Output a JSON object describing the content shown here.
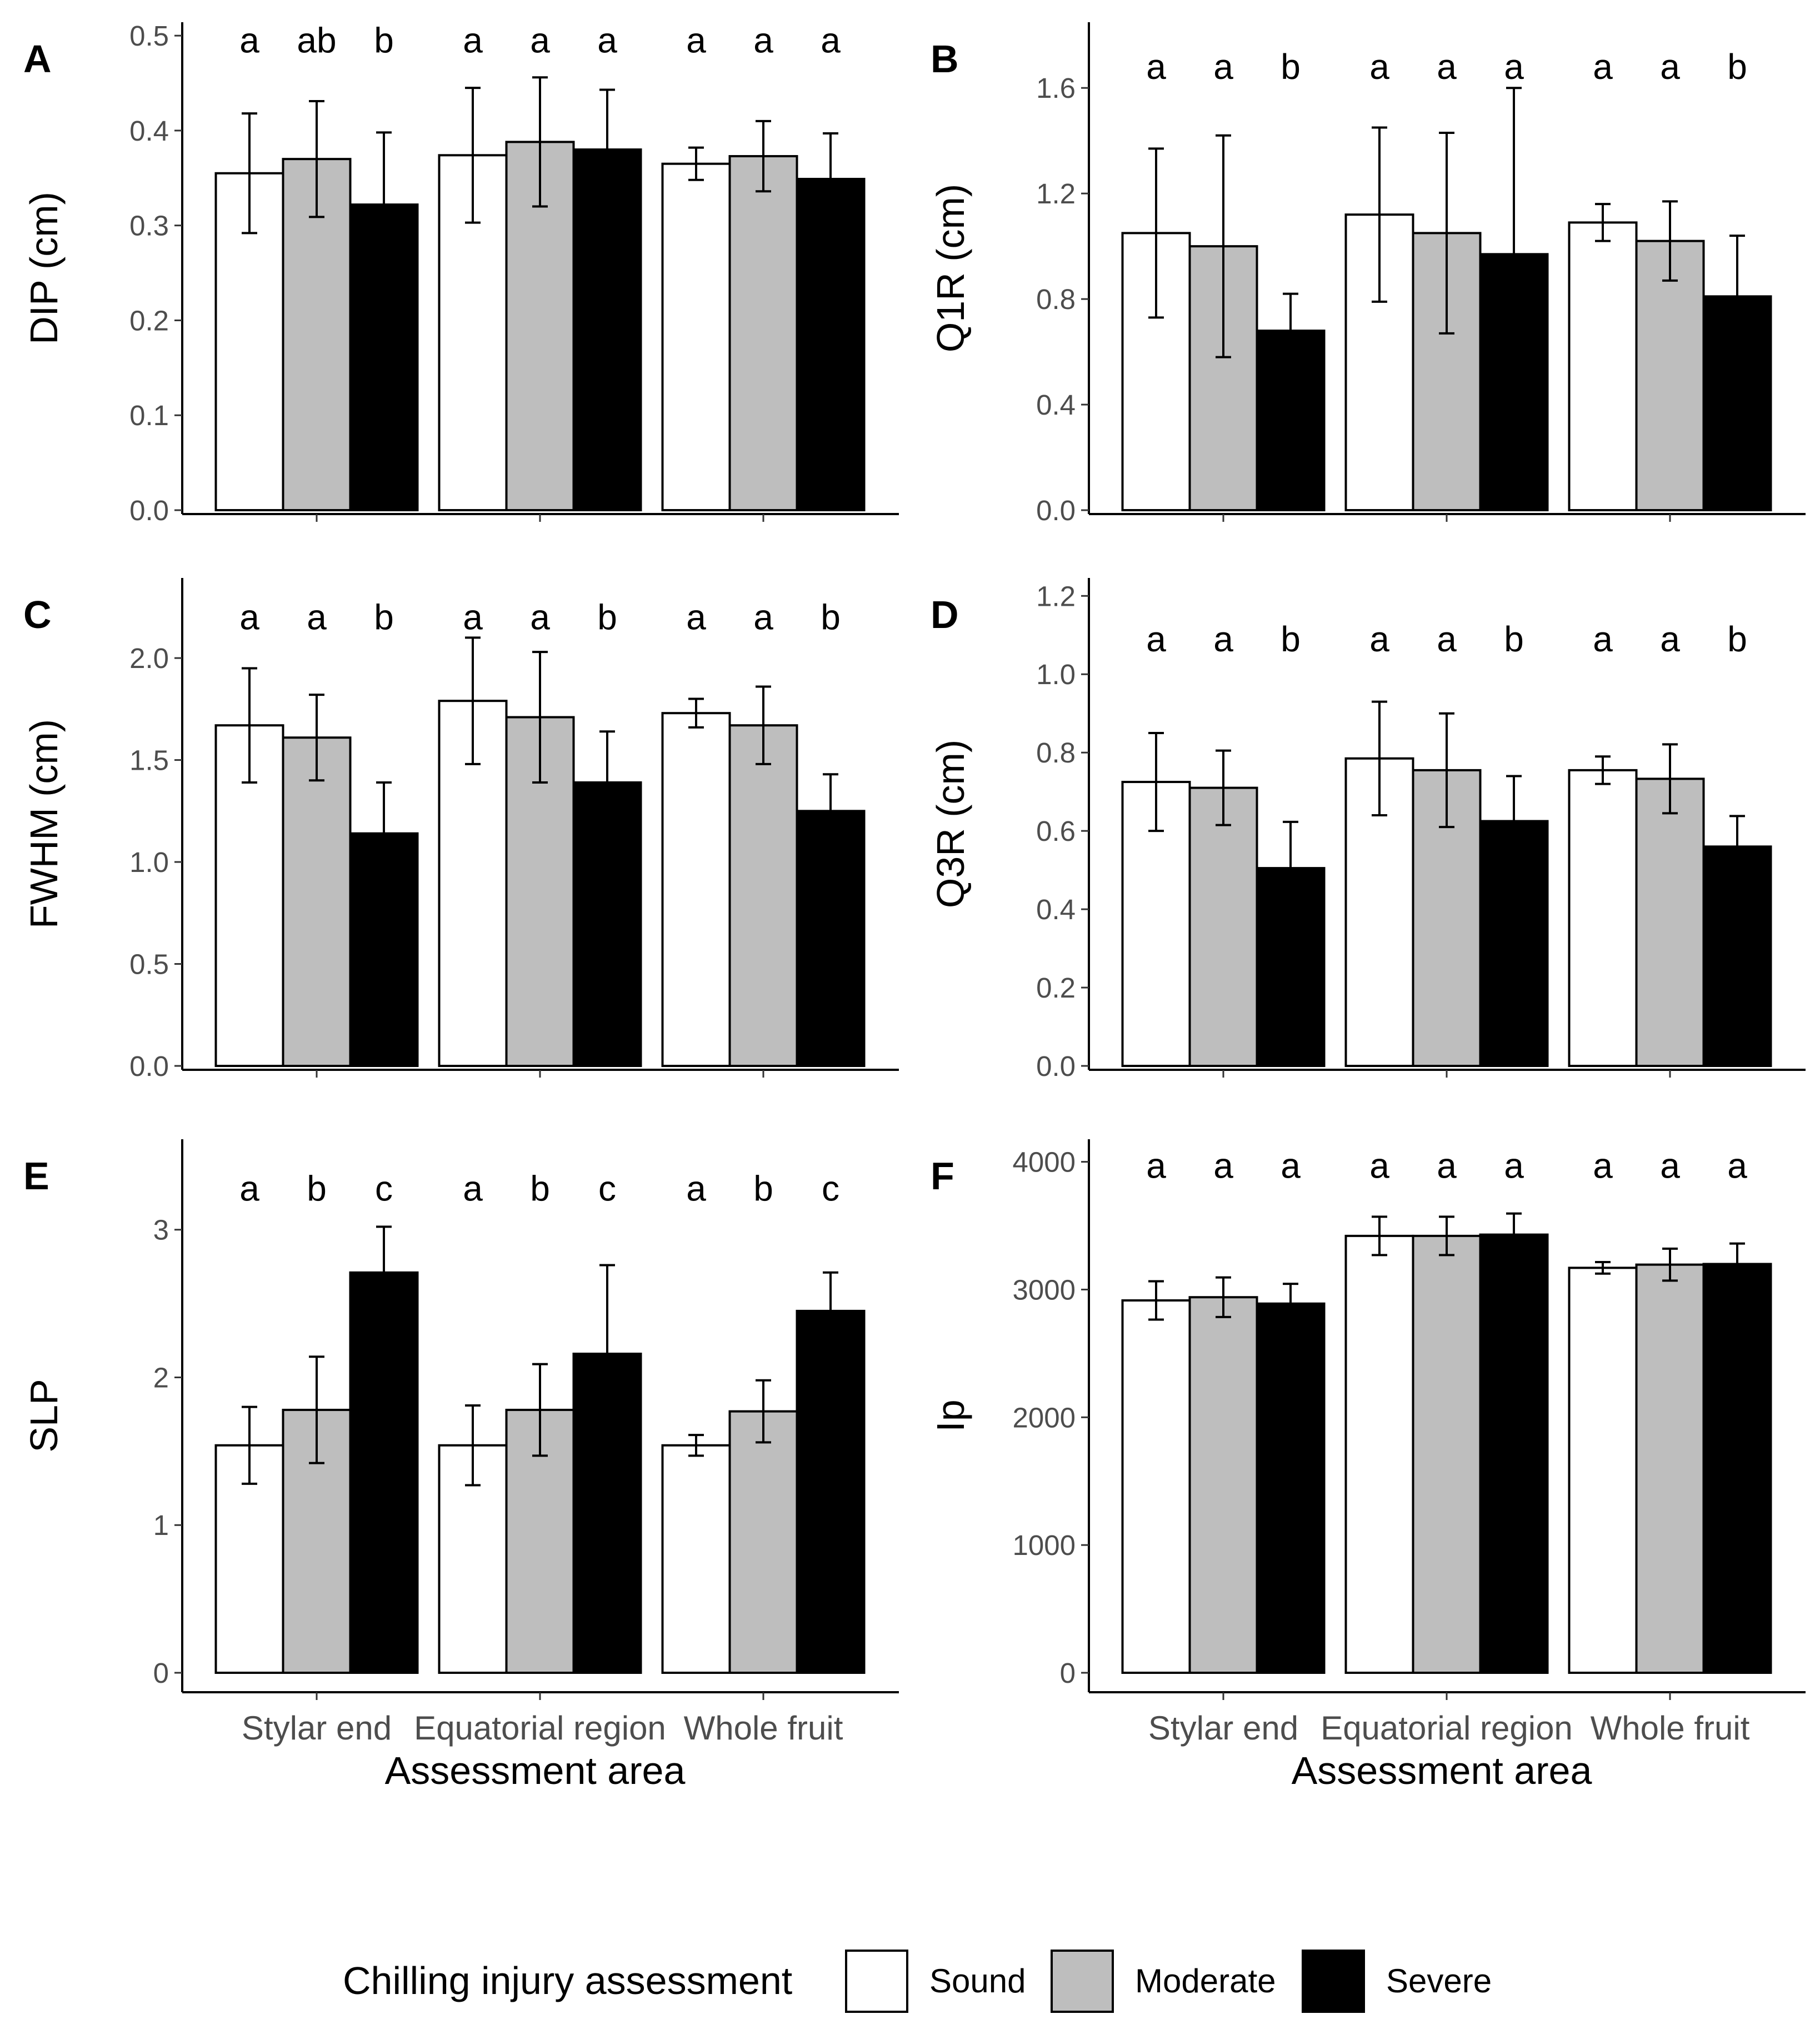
{
  "colors": {
    "sound": "#ffffff",
    "moderate": "#bebebe",
    "severe": "#000000",
    "axis": "#000000"
  },
  "legend": {
    "title": "Chilling injury assessment",
    "items": [
      {
        "label": "Sound",
        "color": "#ffffff"
      },
      {
        "label": "Moderate",
        "color": "#bebebe"
      },
      {
        "label": "Severe",
        "color": "#000000"
      }
    ]
  },
  "chart_data": [
    {
      "panel": "A",
      "type": "bar",
      "ylabel": "DIP (cm)",
      "xlabel": "",
      "ylim": [
        0,
        0.52
      ],
      "yticks": [
        "0.0",
        "0.1",
        "0.2",
        "0.3",
        "0.4",
        "0.5"
      ],
      "yticks_values": [
        0,
        0.1,
        0.2,
        0.3,
        0.4,
        0.5
      ],
      "categories": [
        "Stylar end",
        "Equatorial region",
        "Whole fruit"
      ],
      "show_category_labels": false,
      "series": [
        {
          "name": "Sound",
          "values": [
            0.355,
            0.374,
            0.365
          ],
          "errors": [
            0.063,
            0.071,
            0.017
          ]
        },
        {
          "name": "Moderate",
          "values": [
            0.37,
            0.388,
            0.373
          ],
          "errors": [
            0.061,
            0.068,
            0.037
          ]
        },
        {
          "name": "Severe",
          "values": [
            0.322,
            0.38,
            0.349
          ],
          "errors": [
            0.076,
            0.063,
            0.048
          ]
        }
      ],
      "letters": [
        [
          "a",
          "ab",
          "b"
        ],
        [
          "a",
          "a",
          "a"
        ],
        [
          "a",
          "a",
          "a"
        ]
      ],
      "letters_y": 0.495
    },
    {
      "panel": "B",
      "type": "bar",
      "ylabel": "Q1R (cm)",
      "xlabel": "",
      "ylim": [
        0,
        1.87
      ],
      "yticks": [
        "0.0",
        "0.4",
        "0.8",
        "1.2",
        "1.6"
      ],
      "yticks_values": [
        0,
        0.4,
        0.8,
        1.2,
        1.6
      ],
      "categories": [
        "Stylar end",
        "Equatorial region",
        "Whole fruit"
      ],
      "show_category_labels": false,
      "series": [
        {
          "name": "Sound",
          "values": [
            1.05,
            1.12,
            1.09
          ],
          "errors": [
            0.32,
            0.33,
            0.07
          ]
        },
        {
          "name": "Moderate",
          "values": [
            1.0,
            1.05,
            1.02
          ],
          "errors": [
            0.42,
            0.38,
            0.15
          ]
        },
        {
          "name": "Severe",
          "values": [
            0.68,
            0.97,
            0.81
          ],
          "errors": [
            0.14,
            0.63,
            0.23
          ]
        }
      ],
      "letters": [
        [
          "a",
          "a",
          "b"
        ],
        [
          "a",
          "a",
          "a"
        ],
        [
          "a",
          "a",
          "b"
        ]
      ],
      "letters_y": 1.68
    },
    {
      "panel": "C",
      "type": "bar",
      "ylabel": "FWHM (cm)",
      "xlabel": "",
      "ylim": [
        0,
        2.42
      ],
      "yticks": [
        "0.0",
        "0.5",
        "1.0",
        "1.5",
        "2.0"
      ],
      "yticks_values": [
        0,
        0.5,
        1.0,
        1.5,
        2.0
      ],
      "categories": [
        "Stylar end",
        "Equatorial region",
        "Whole fruit"
      ],
      "show_category_labels": false,
      "series": [
        {
          "name": "Sound",
          "values": [
            1.67,
            1.79,
            1.73
          ],
          "errors": [
            0.28,
            0.31,
            0.07
          ]
        },
        {
          "name": "Moderate",
          "values": [
            1.61,
            1.71,
            1.67
          ],
          "errors": [
            0.21,
            0.32,
            0.19
          ]
        },
        {
          "name": "Severe",
          "values": [
            1.14,
            1.39,
            1.25
          ],
          "errors": [
            0.25,
            0.25,
            0.18
          ]
        }
      ],
      "letters": [
        [
          "a",
          "a",
          "b"
        ],
        [
          "a",
          "a",
          "b"
        ],
        [
          "a",
          "a",
          "b"
        ]
      ],
      "letters_y": 2.2
    },
    {
      "panel": "D",
      "type": "bar",
      "ylabel": "Q3R (cm)",
      "xlabel": "",
      "ylim": [
        0,
        1.26
      ],
      "yticks": [
        "0.0",
        "0.2",
        "0.4",
        "0.6",
        "0.8",
        "1.0",
        "1.2"
      ],
      "yticks_values": [
        0,
        0.2,
        0.4,
        0.6,
        0.8,
        1.0,
        1.2
      ],
      "categories": [
        "Stylar end",
        "Equatorial region",
        "Whole fruit"
      ],
      "show_category_labels": false,
      "series": [
        {
          "name": "Sound",
          "values": [
            0.725,
            0.785,
            0.755
          ],
          "errors": [
            0.125,
            0.145,
            0.035
          ]
        },
        {
          "name": "Moderate",
          "values": [
            0.71,
            0.755,
            0.733
          ],
          "errors": [
            0.095,
            0.145,
            0.088
          ]
        },
        {
          "name": "Severe",
          "values": [
            0.505,
            0.625,
            0.56
          ],
          "errors": [
            0.118,
            0.115,
            0.078
          ]
        }
      ],
      "letters": [
        [
          "a",
          "a",
          "b"
        ],
        [
          "a",
          "a",
          "b"
        ],
        [
          "a",
          "a",
          "b"
        ]
      ],
      "letters_y": 1.09
    },
    {
      "panel": "E",
      "type": "bar",
      "ylabel": "SLP",
      "xlabel": "Assessment area",
      "ylim": [
        0,
        3.65
      ],
      "yticks": [
        "0",
        "1",
        "2",
        "3"
      ],
      "yticks_values": [
        0,
        1,
        2,
        3
      ],
      "categories": [
        "Stylar end",
        "Equatorial region",
        "Whole fruit"
      ],
      "show_category_labels": true,
      "series": [
        {
          "name": "Sound",
          "values": [
            1.54,
            1.54,
            1.54
          ],
          "errors": [
            0.26,
            0.27,
            0.07
          ]
        },
        {
          "name": "Moderate",
          "values": [
            1.78,
            1.78,
            1.77
          ],
          "errors": [
            0.36,
            0.31,
            0.21
          ]
        },
        {
          "name": "Severe",
          "values": [
            2.71,
            2.16,
            2.45
          ],
          "errors": [
            0.31,
            0.6,
            0.26
          ]
        }
      ],
      "letters": [
        [
          "a",
          "b",
          "c"
        ],
        [
          "a",
          "b",
          "c"
        ],
        [
          "a",
          "b",
          "c"
        ]
      ],
      "letters_y": 3.28
    },
    {
      "panel": "F",
      "type": "bar",
      "ylabel": "Ip",
      "xlabel": "Assessment area",
      "ylim": [
        0,
        4220
      ],
      "yticks": [
        "0",
        "1000",
        "2000",
        "3000",
        "4000"
      ],
      "yticks_values": [
        0,
        1000,
        2000,
        3000,
        4000
      ],
      "categories": [
        "Stylar end",
        "Equatorial region",
        "Whole fruit"
      ],
      "show_category_labels": true,
      "series": [
        {
          "name": "Sound",
          "values": [
            2915,
            3420,
            3170
          ],
          "errors": [
            150,
            150,
            45
          ]
        },
        {
          "name": "Moderate",
          "values": [
            2940,
            3420,
            3195
          ],
          "errors": [
            155,
            150,
            125
          ]
        },
        {
          "name": "Severe",
          "values": [
            2890,
            3430,
            3200
          ],
          "errors": [
            155,
            165,
            160
          ]
        }
      ],
      "letters": [
        [
          "a",
          "a",
          "a"
        ],
        [
          "a",
          "a",
          "a"
        ],
        [
          "a",
          "a",
          "a"
        ]
      ],
      "letters_y": 3970
    }
  ]
}
